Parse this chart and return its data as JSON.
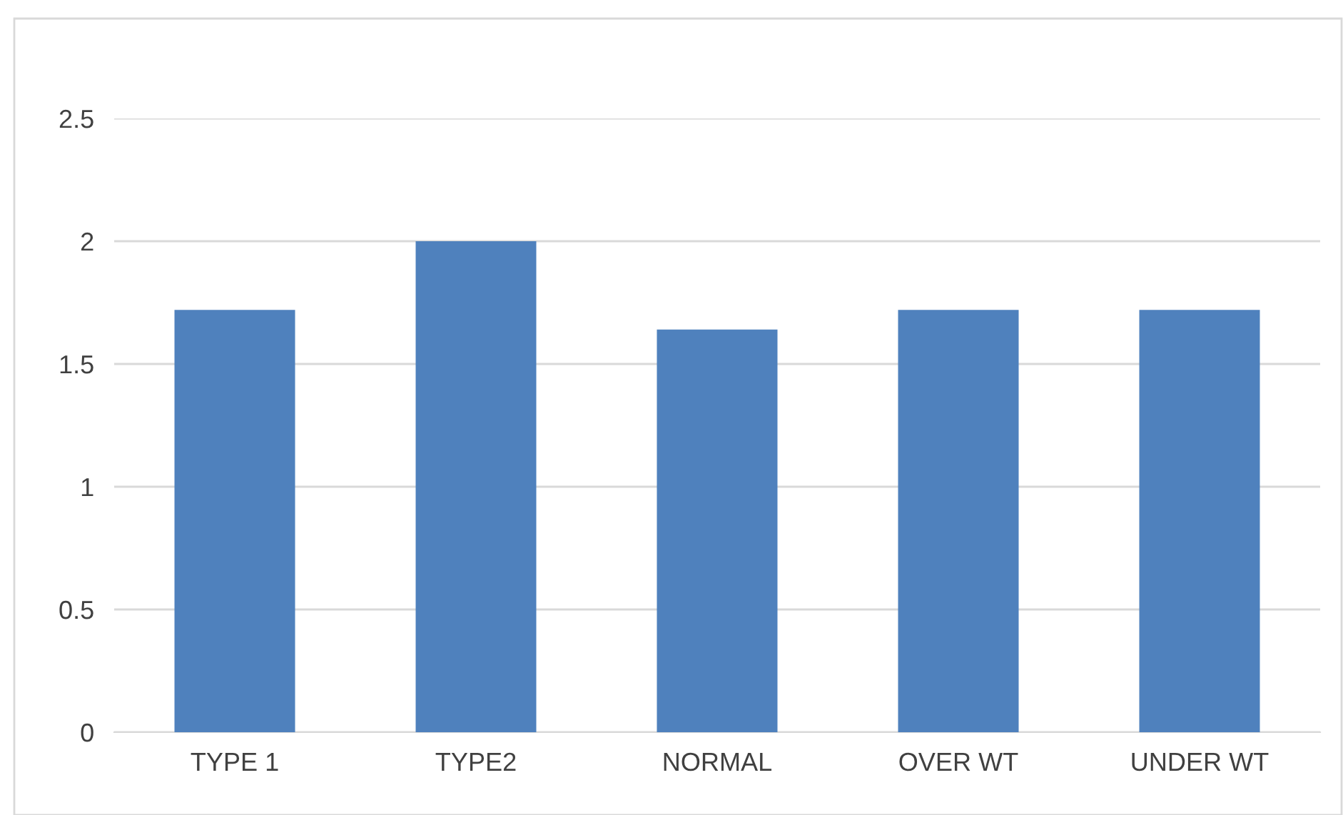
{
  "chart_data": {
    "type": "bar",
    "categories": [
      "TYPE 1",
      "TYPE2",
      "NORMAL",
      "OVER WT",
      "UNDER WT"
    ],
    "values": [
      1.72,
      2.0,
      1.64,
      1.72,
      1.72
    ],
    "color": "#4f81bd",
    "ylim": [
      0,
      2.5
    ],
    "yticks": [
      0,
      0.5,
      1,
      1.5,
      2,
      2.5
    ],
    "grid": "y"
  }
}
